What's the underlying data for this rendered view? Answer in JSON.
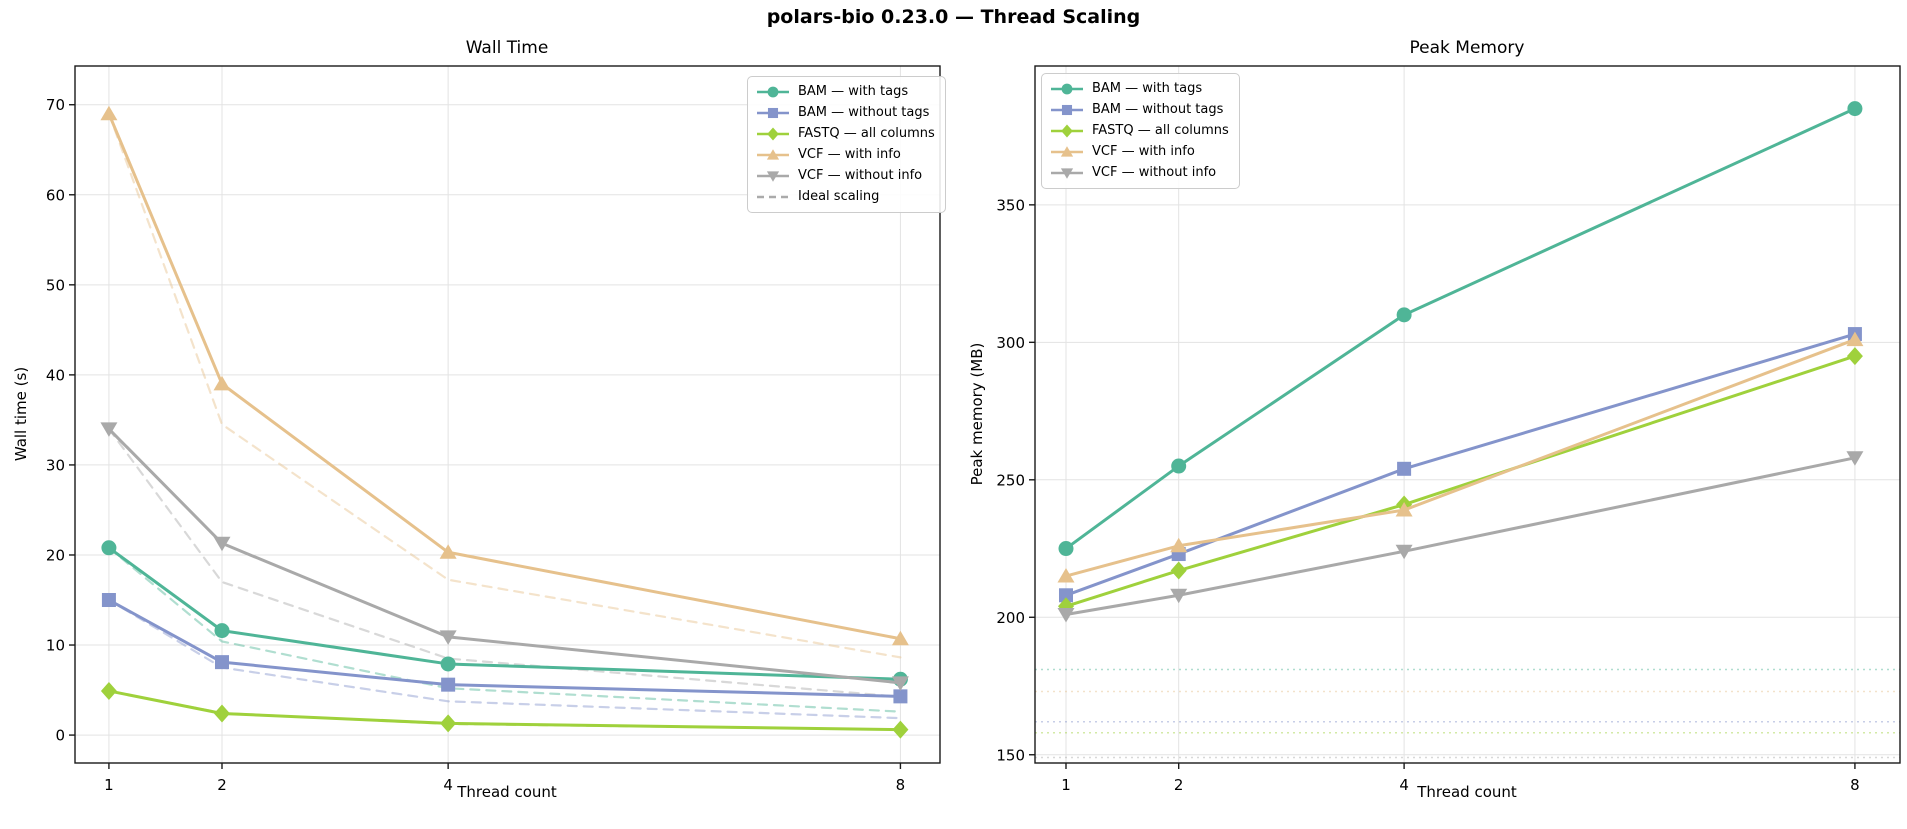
{
  "title": "polars-bio 0.23.0 — Thread Scaling",
  "chart_data": [
    {
      "type": "line",
      "title": "Wall Time",
      "xlabel": "Thread count",
      "ylabel": "Wall time (s)",
      "x_scale": "linear",
      "x": [
        1,
        2,
        4,
        8
      ],
      "x_ticks": [
        1,
        2,
        4,
        8
      ],
      "y_ticks": [
        0,
        10,
        20,
        30,
        40,
        50,
        60,
        70
      ],
      "xlim": [
        0.7,
        8.35
      ],
      "ylim": [
        -3.1,
        74.3
      ],
      "grid": true,
      "legend_position": "upper right",
      "series": [
        {
          "name": "BAM — with tags",
          "color": "#4fb597",
          "marker": "circle",
          "values": [
            20.8,
            11.6,
            7.9,
            6.2
          ]
        },
        {
          "name": "BAM — without tags",
          "color": "#8494cb",
          "marker": "square",
          "values": [
            15.0,
            8.1,
            5.6,
            4.3
          ]
        },
        {
          "name": "FASTQ — all columns",
          "color": "#9fd13c",
          "marker": "diamond",
          "values": [
            4.9,
            2.4,
            1.3,
            0.6
          ]
        },
        {
          "name": "VCF — with info",
          "color": "#e6c18c",
          "marker": "triangle-up",
          "values": [
            69.0,
            39.0,
            20.3,
            10.7
          ]
        },
        {
          "name": "VCF — without info",
          "color": "#a9a9a9",
          "marker": "triangle-down",
          "values": [
            34.0,
            21.3,
            10.9,
            5.8
          ]
        }
      ],
      "ideal_series": [
        {
          "name": "Ideal scaling — BAM with tags",
          "color": "#4fb597",
          "values": [
            20.8,
            10.4,
            5.2,
            2.6
          ]
        },
        {
          "name": "Ideal scaling — BAM without tags",
          "color": "#8494cb",
          "values": [
            15.0,
            7.5,
            3.75,
            1.88
          ]
        },
        {
          "name": "Ideal scaling — FASTQ all columns",
          "color": "#9fd13c",
          "values": [
            4.9,
            2.45,
            1.23,
            0.61
          ]
        },
        {
          "name": "Ideal scaling — VCF with info",
          "color": "#e6c18c",
          "values": [
            69.0,
            34.5,
            17.25,
            8.63
          ]
        },
        {
          "name": "Ideal scaling — VCF without info",
          "color": "#a9a9a9",
          "values": [
            34.0,
            17.0,
            8.5,
            4.25
          ]
        }
      ],
      "ideal_legend_label": "Ideal scaling",
      "ideal_legend_color": "#aaaaaa"
    },
    {
      "type": "line",
      "title": "Peak Memory",
      "xlabel": "Thread count",
      "ylabel": "Peak memory (MB)",
      "x_scale": "linear",
      "x": [
        1,
        2,
        4,
        8
      ],
      "x_ticks": [
        1,
        2,
        4,
        8
      ],
      "y_ticks": [
        150,
        200,
        250,
        300,
        350
      ],
      "xlim": [
        0.725,
        8.4
      ],
      "ylim": [
        147.0,
        400.5
      ],
      "grid": true,
      "legend_position": "upper left",
      "series": [
        {
          "name": "BAM — with tags",
          "color": "#4fb597",
          "marker": "circle",
          "values": [
            225,
            255,
            310,
            385
          ]
        },
        {
          "name": "BAM — without tags",
          "color": "#8494cb",
          "marker": "square",
          "values": [
            208,
            223,
            254,
            303
          ]
        },
        {
          "name": "FASTQ — all columns",
          "color": "#9fd13c",
          "marker": "diamond",
          "values": [
            204,
            217,
            241,
            295
          ]
        },
        {
          "name": "VCF — with info",
          "color": "#e6c18c",
          "marker": "triangle-up",
          "values": [
            215,
            226,
            239,
            301
          ]
        },
        {
          "name": "VCF — without info",
          "color": "#a9a9a9",
          "marker": "triangle-down",
          "values": [
            201,
            208,
            224,
            258
          ]
        }
      ],
      "baselines": [
        {
          "color": "#4fb597",
          "value": 181
        },
        {
          "color": "#e6c18c",
          "value": 173
        },
        {
          "color": "#8494cb",
          "value": 162
        },
        {
          "color": "#9fd13c",
          "value": 158
        },
        {
          "color": "#a9a9a9",
          "value": 149
        }
      ]
    }
  ],
  "style_colors": {
    "grid": "#e3e3e3",
    "frame": "#1a1a1a",
    "text": "#000000"
  }
}
